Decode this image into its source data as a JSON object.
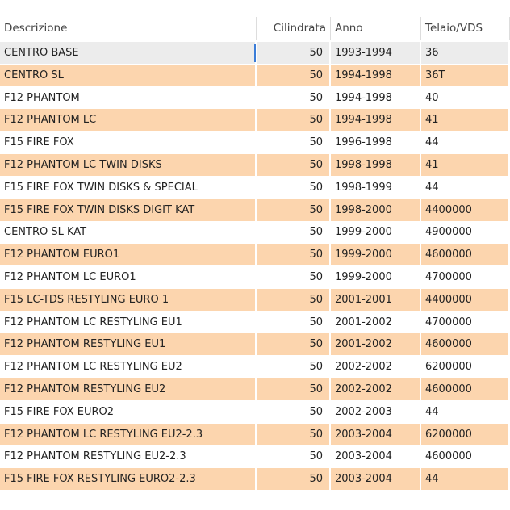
{
  "table": {
    "headers": [
      "Descrizione",
      "Cilindrata",
      "Anno",
      "Telaio/VDS"
    ],
    "rows": [
      [
        "CENTRO BASE",
        "50",
        "1993-1994",
        "36"
      ],
      [
        "CENTRO SL",
        "50",
        "1994-1998",
        "36T"
      ],
      [
        "F12 PHANTOM",
        "50",
        "1994-1998",
        "40"
      ],
      [
        "F12 PHANTOM LC",
        "50",
        "1994-1998",
        "41"
      ],
      [
        "F15 FIRE FOX",
        "50",
        "1996-1998",
        "44"
      ],
      [
        "F12 PHANTOM LC TWIN DISKS",
        "50",
        "1998-1998",
        "41"
      ],
      [
        "F15 FIRE FOX TWIN DISKS & SPECIAL",
        "50",
        "1998-1999",
        "44"
      ],
      [
        "F15 FIRE FOX TWIN DISKS DIGIT KAT",
        "50",
        "1998-2000",
        "4400000"
      ],
      [
        "CENTRO SL KAT",
        "50",
        "1999-2000",
        "4900000"
      ],
      [
        "F12 PHANTOM EURO1",
        "50",
        "1999-2000",
        "4600000"
      ],
      [
        "F12 PHANTOM LC EURO1",
        "50",
        "1999-2000",
        "4700000"
      ],
      [
        "F15 LC-TDS RESTYLING EURO 1",
        "50",
        "2001-2001",
        "4400000"
      ],
      [
        "F12 PHANTOM LC RESTYLING EU1",
        "50",
        "2001-2002",
        "4700000"
      ],
      [
        "F12 PHANTOM RESTYLING EU1",
        "50",
        "2001-2002",
        "4600000"
      ],
      [
        "F12 PHANTOM LC RESTYLING EU2",
        "50",
        "2002-2002",
        "6200000"
      ],
      [
        "F12 PHANTOM RESTYLING EU2",
        "50",
        "2002-2002",
        "4600000"
      ],
      [
        "F15 FIRE FOX EURO2",
        "50",
        "2002-2003",
        "44"
      ],
      [
        "F12 PHANTOM LC RESTYLING EU2-2.3",
        "50",
        "2003-2004",
        "6200000"
      ],
      [
        "F12 PHANTOM RESTYLING EU2-2.3",
        "50",
        "2003-2004",
        "4600000"
      ],
      [
        "F15 FIRE FOX RESTYLING EURO2-2.3",
        "50",
        "2003-2004",
        "44"
      ]
    ]
  }
}
